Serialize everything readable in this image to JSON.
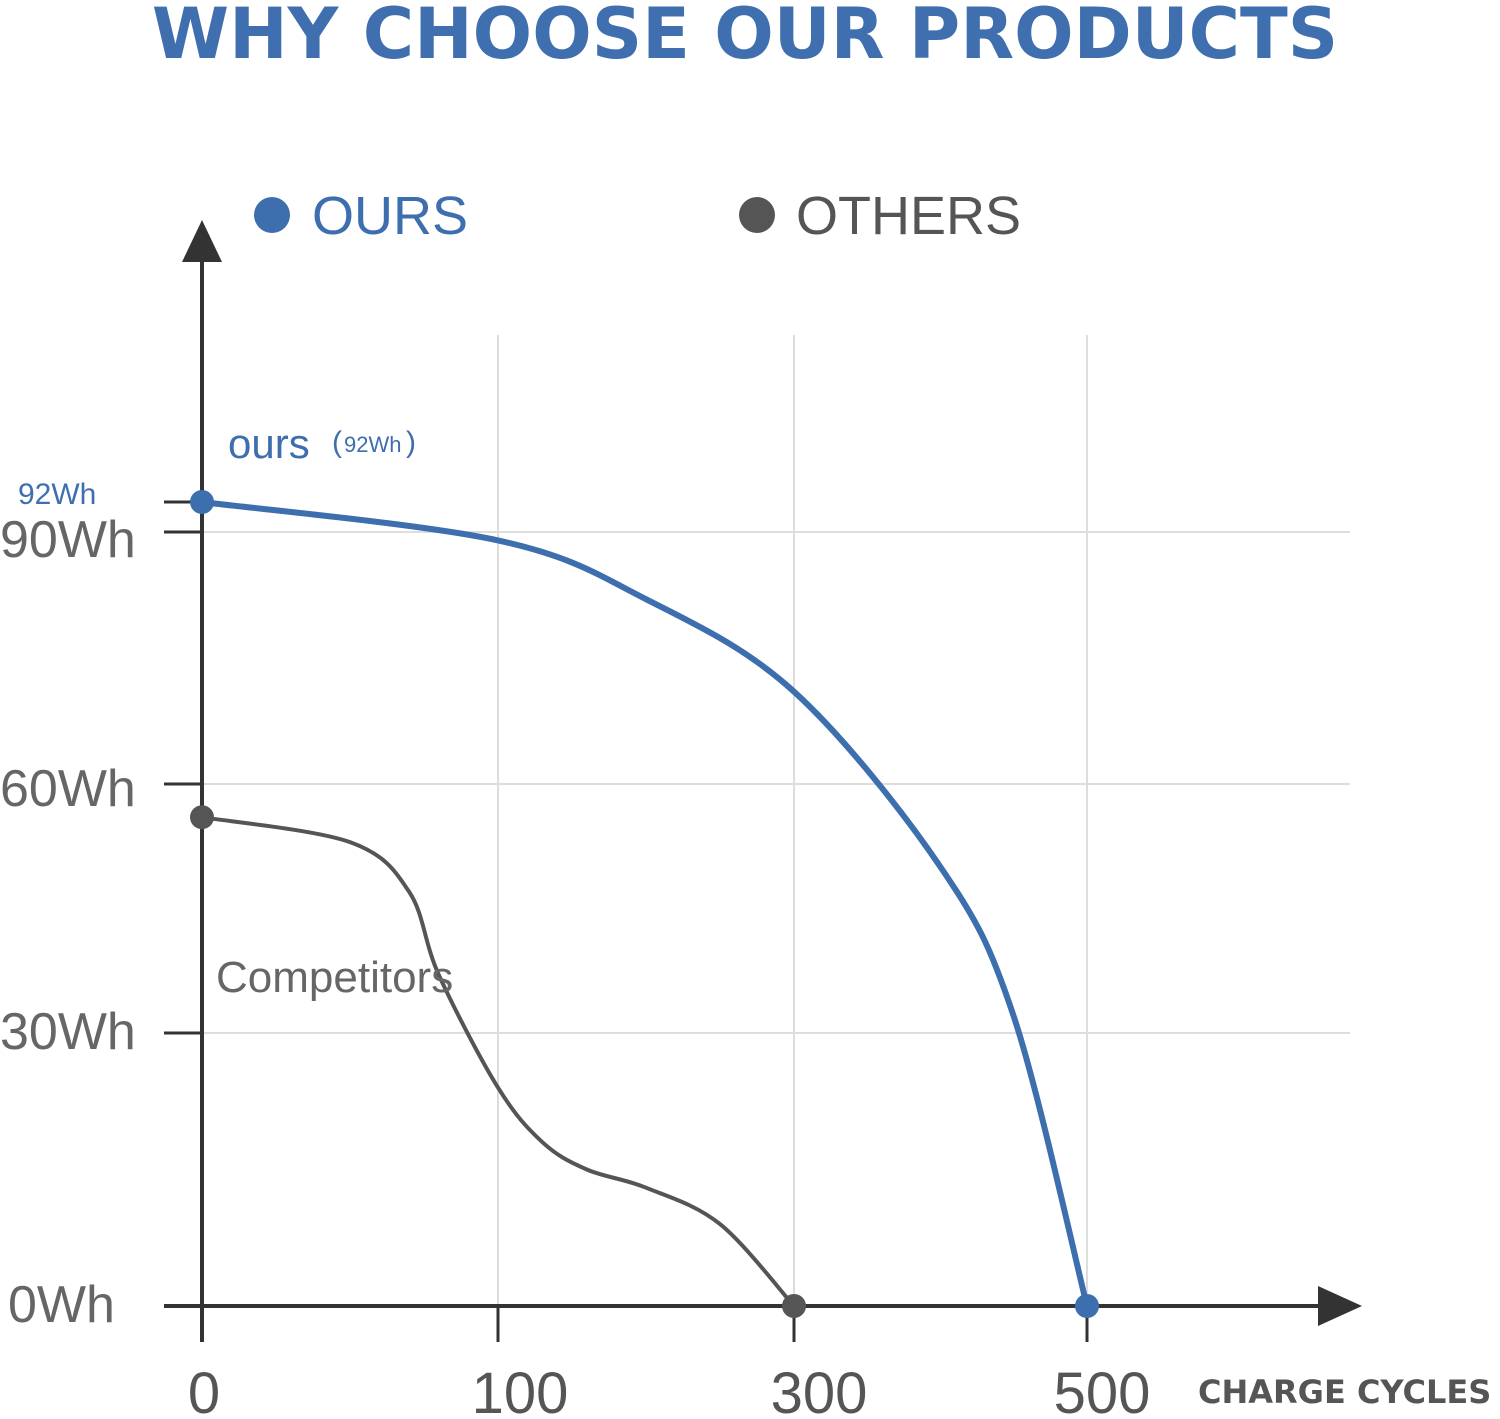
{
  "colors": {
    "ours": "#3d6eae",
    "others": "#555555",
    "grid": "#dddddd",
    "axis": "#333333"
  },
  "title": "WHY CHOOSE OUR PRODUCTS",
  "legend": [
    {
      "label": "OURS",
      "color": "#3d6eae"
    },
    {
      "label": "OTHERS",
      "color": "#555555"
    }
  ],
  "annotations": {
    "ours_label": "ours",
    "ours_value": "92Wh",
    "ours_y_marker": "92Wh",
    "competitors_label": "Competitors"
  },
  "chart_data": {
    "type": "line",
    "title": "WHY CHOOSE OUR PRODUCTS",
    "xlabel": "CHARGE CYCLES",
    "ylabel": "",
    "x_ticks": [
      {
        "value": 0,
        "label": "0"
      },
      {
        "value": 100,
        "label": "100"
      },
      {
        "value": 300,
        "label": "300"
      },
      {
        "value": 500,
        "label": "500"
      }
    ],
    "y_ticks": [
      {
        "value": 0,
        "label": "0Wh"
      },
      {
        "value": 30,
        "label": "30Wh"
      },
      {
        "value": 60,
        "label": "60Wh"
      },
      {
        "value": 90,
        "label": "90Wh"
      }
    ],
    "y_marker": {
      "value": 92,
      "label": "92Wh"
    },
    "grid": true,
    "legend_position": "top",
    "series": [
      {
        "name": "OURS",
        "color": "#3d6eae",
        "points": [
          [
            0,
            92
          ],
          [
            100,
            89
          ],
          [
            200,
            82
          ],
          [
            300,
            71
          ],
          [
            400,
            50
          ],
          [
            450,
            32
          ],
          [
            500,
            0
          ]
        ],
        "endpoints": [
          [
            0,
            92
          ],
          [
            500,
            0
          ]
        ]
      },
      {
        "name": "OTHERS",
        "color": "#555555",
        "points": [
          [
            0,
            56
          ],
          [
            50,
            53
          ],
          [
            70,
            47
          ],
          [
            80,
            37
          ],
          [
            100,
            24
          ],
          [
            130,
            18
          ],
          [
            160,
            15
          ],
          [
            200,
            13
          ],
          [
            250,
            9
          ],
          [
            300,
            0
          ]
        ],
        "endpoints": [
          [
            0,
            56
          ],
          [
            300,
            0
          ]
        ]
      }
    ]
  }
}
